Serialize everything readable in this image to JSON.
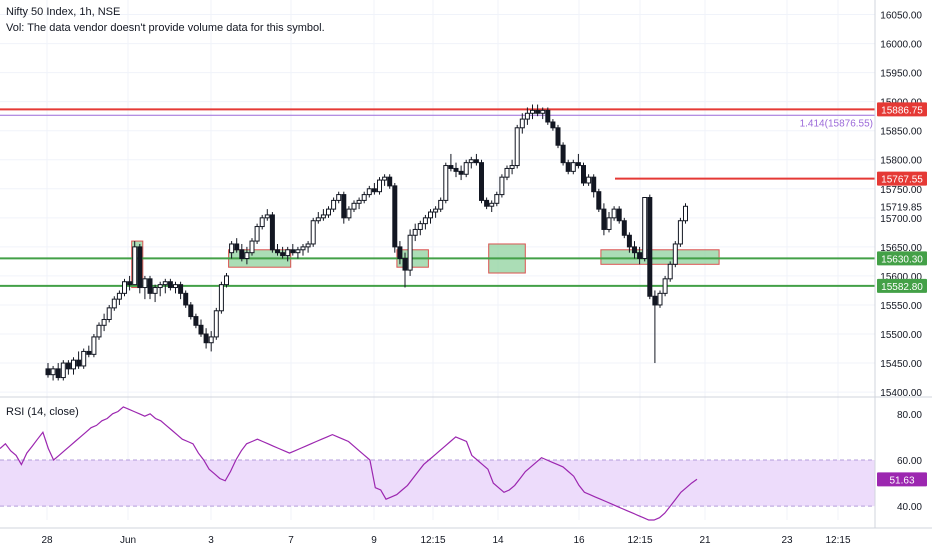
{
  "header": {
    "title": "Nifty 50 Index, 1h, NSE",
    "volume_note": "Vol: The data vendor doesn't provide volume data for this symbol."
  },
  "colors": {
    "background": "#ffffff",
    "candle_up_fill": "#ffffff",
    "candle_up_border": "#131722",
    "candle_down": "#131722",
    "resistance": "#e53935",
    "support": "#43a047",
    "fib": "#9c6ad9",
    "zone_fill": "#8fd19e",
    "zone_border": "#d9534f",
    "rsi_line": "#9c27b0",
    "rsi_band": "#eddcfb",
    "axis_text": "#131722"
  },
  "chart_data": {
    "type": "candlestick",
    "title": "Nifty 50 Index, 1h, NSE",
    "ylim": [
      15395,
      16075
    ],
    "y_axis_ticks": [
      "16050.00",
      "16000.00",
      "15950.00",
      "15900.00",
      "15850.00",
      "15800.00",
      "15750.00",
      "15700.00",
      "15650.00",
      "15600.00",
      "15550.00",
      "15500.00",
      "15450.00",
      "15400.00"
    ],
    "price_labels": [
      {
        "text": "15886.75",
        "value": 15886.75,
        "kind": "resistance"
      },
      {
        "text": "15767.55",
        "value": 15767.55,
        "kind": "resistance"
      },
      {
        "text": "15719.85",
        "value": 15719.85,
        "kind": "plain"
      },
      {
        "text": "15630.30",
        "value": 15630.3,
        "kind": "support"
      },
      {
        "text": "15582.80",
        "value": 15582.8,
        "kind": "support"
      }
    ],
    "fib_label": {
      "text": "1.414(15876.55)",
      "value": 15876.55
    },
    "x_axis_labels": [
      "28",
      "Jun",
      "3",
      "7",
      "9",
      "12:15",
      "14",
      "16",
      "12:15",
      "21",
      "23",
      "12:15"
    ],
    "candles": [
      [
        15440,
        15450,
        15425,
        15430
      ],
      [
        15430,
        15445,
        15420,
        15440
      ],
      [
        15440,
        15450,
        15420,
        15425
      ],
      [
        15425,
        15455,
        15420,
        15450
      ],
      [
        15450,
        15455,
        15430,
        15440
      ],
      [
        15440,
        15460,
        15430,
        15455
      ],
      [
        15455,
        15470,
        15440,
        15445
      ],
      [
        15445,
        15475,
        15440,
        15470
      ],
      [
        15470,
        15480,
        15460,
        15465
      ],
      [
        15465,
        15500,
        15460,
        15495
      ],
      [
        15495,
        15520,
        15490,
        15515
      ],
      [
        15515,
        15535,
        15505,
        15525
      ],
      [
        15525,
        15550,
        15520,
        15545
      ],
      [
        15545,
        15565,
        15540,
        15560
      ],
      [
        15560,
        15575,
        15550,
        15570
      ],
      [
        15570,
        15595,
        15565,
        15590
      ],
      [
        15590,
        15600,
        15575,
        15585
      ],
      [
        15585,
        15660,
        15585,
        15650
      ],
      [
        15650,
        15655,
        15570,
        15580
      ],
      [
        15580,
        15600,
        15560,
        15595
      ],
      [
        15595,
        15600,
        15560,
        15570
      ],
      [
        15570,
        15585,
        15555,
        15580
      ],
      [
        15580,
        15590,
        15565,
        15585
      ],
      [
        15585,
        15595,
        15570,
        15590
      ],
      [
        15590,
        15595,
        15575,
        15580
      ],
      [
        15580,
        15590,
        15570,
        15585
      ],
      [
        15585,
        15590,
        15560,
        15570
      ],
      [
        15570,
        15575,
        15545,
        15550
      ],
      [
        15550,
        15555,
        15525,
        15530
      ],
      [
        15530,
        15535,
        15510,
        15515
      ],
      [
        15515,
        15525,
        15495,
        15500
      ],
      [
        15500,
        15510,
        15475,
        15485
      ],
      [
        15485,
        15505,
        15470,
        15495
      ],
      [
        15495,
        15545,
        15490,
        15540
      ],
      [
        15540,
        15590,
        15535,
        15585
      ],
      [
        15585,
        15605,
        15580,
        15600
      ],
      [
        15640,
        15660,
        15630,
        15655
      ],
      [
        15655,
        15665,
        15640,
        15645
      ],
      [
        15645,
        15655,
        15625,
        15630
      ],
      [
        15630,
        15650,
        15620,
        15640
      ],
      [
        15640,
        15665,
        15635,
        15660
      ],
      [
        15660,
        15690,
        15655,
        15685
      ],
      [
        15685,
        15705,
        15680,
        15700
      ],
      [
        15700,
        15715,
        15695,
        15705
      ],
      [
        15705,
        15710,
        15640,
        15645
      ],
      [
        15645,
        15655,
        15635,
        15640
      ],
      [
        15640,
        15650,
        15630,
        15635
      ],
      [
        15635,
        15650,
        15625,
        15645
      ],
      [
        15645,
        15655,
        15635,
        15640
      ],
      [
        15640,
        15650,
        15630,
        15645
      ],
      [
        15645,
        15655,
        15635,
        15650
      ],
      [
        15650,
        15660,
        15640,
        15655
      ],
      [
        15655,
        15700,
        15650,
        15695
      ],
      [
        15695,
        15710,
        15690,
        15700
      ],
      [
        15700,
        15715,
        15695,
        15705
      ],
      [
        15705,
        15720,
        15700,
        15715
      ],
      [
        15715,
        15735,
        15710,
        15730
      ],
      [
        15730,
        15745,
        15725,
        15740
      ],
      [
        15740,
        15745,
        15690,
        15700
      ],
      [
        15700,
        15720,
        15695,
        15715
      ],
      [
        15715,
        15730,
        15710,
        15725
      ],
      [
        15725,
        15735,
        15715,
        15730
      ],
      [
        15730,
        15745,
        15725,
        15740
      ],
      [
        15740,
        15755,
        15735,
        15750
      ],
      [
        15750,
        15760,
        15740,
        15745
      ],
      [
        15745,
        15770,
        15740,
        15765
      ],
      [
        15765,
        15775,
        15755,
        15770
      ],
      [
        15770,
        15775,
        15750,
        15755
      ],
      [
        15755,
        15760,
        15640,
        15650
      ],
      [
        15650,
        15660,
        15620,
        15630
      ],
      [
        15630,
        15640,
        15580,
        15610
      ],
      [
        15610,
        15680,
        15600,
        15670
      ],
      [
        15670,
        15690,
        15660,
        15680
      ],
      [
        15680,
        15695,
        15670,
        15690
      ],
      [
        15690,
        15705,
        15680,
        15700
      ],
      [
        15700,
        15715,
        15690,
        15710
      ],
      [
        15710,
        15720,
        15700,
        15715
      ],
      [
        15715,
        15735,
        15710,
        15730
      ],
      [
        15730,
        15795,
        15725,
        15790
      ],
      [
        15790,
        15810,
        15780,
        15785
      ],
      [
        15785,
        15795,
        15770,
        15780
      ],
      [
        15780,
        15790,
        15765,
        15775
      ],
      [
        15775,
        15800,
        15770,
        15795
      ],
      [
        15795,
        15805,
        15785,
        15800
      ],
      [
        15800,
        15810,
        15790,
        15795
      ],
      [
        15795,
        15800,
        15725,
        15730
      ],
      [
        15730,
        15735,
        15715,
        15720
      ],
      [
        15720,
        15730,
        15710,
        15725
      ],
      [
        15725,
        15745,
        15720,
        15740
      ],
      [
        15740,
        15775,
        15735,
        15770
      ],
      [
        15770,
        15790,
        15765,
        15785
      ],
      [
        15785,
        15800,
        15775,
        15790
      ],
      [
        15790,
        15860,
        15785,
        15855
      ],
      [
        15855,
        15880,
        15845,
        15870
      ],
      [
        15870,
        15890,
        15860,
        15880
      ],
      [
        15880,
        15895,
        15870,
        15885
      ],
      [
        15885,
        15895,
        15875,
        15880
      ],
      [
        15880,
        15890,
        15870,
        15885
      ],
      [
        15885,
        15890,
        15860,
        15865
      ],
      [
        15865,
        15870,
        15850,
        15855
      ],
      [
        15855,
        15860,
        15820,
        15825
      ],
      [
        15825,
        15830,
        15790,
        15795
      ],
      [
        15795,
        15800,
        15775,
        15780
      ],
      [
        15780,
        15800,
        15775,
        15795
      ],
      [
        15795,
        15810,
        15785,
        15790
      ],
      [
        15790,
        15795,
        15755,
        15760
      ],
      [
        15760,
        15775,
        15755,
        15770
      ],
      [
        15770,
        15775,
        15735,
        15745
      ],
      [
        15745,
        15750,
        15710,
        15715
      ],
      [
        15715,
        15725,
        15670,
        15680
      ],
      [
        15680,
        15710,
        15675,
        15700
      ],
      [
        15700,
        15720,
        15695,
        15715
      ],
      [
        15715,
        15720,
        15690,
        15695
      ],
      [
        15695,
        15700,
        15665,
        15670
      ],
      [
        15670,
        15675,
        15640,
        15650
      ],
      [
        15650,
        15660,
        15630,
        15640
      ],
      [
        15640,
        15650,
        15620,
        15630
      ],
      [
        15630,
        15735,
        15625,
        15735
      ],
      [
        15735,
        15740,
        15560,
        15565
      ],
      [
        15565,
        15575,
        15450,
        15550
      ],
      [
        15550,
        15575,
        15545,
        15570
      ],
      [
        15570,
        15600,
        15565,
        15595
      ],
      [
        15595,
        15625,
        15590,
        15620
      ],
      [
        15620,
        15660,
        15615,
        15655
      ],
      [
        15655,
        15700,
        15650,
        15695
      ],
      [
        15695,
        15725,
        15690,
        15719.85
      ]
    ],
    "resistance_levels": [
      15886.75,
      15767.55
    ],
    "support_levels": [
      15630.3,
      15582.8
    ],
    "fib_level": 15876.55,
    "zones": [
      {
        "from_index": 17,
        "to_index": 18,
        "low": 15580,
        "high": 15660
      },
      {
        "from_index": 36,
        "to_index": 47,
        "low": 15615,
        "high": 15645
      },
      {
        "from_index": 69,
        "to_index": 74,
        "low": 15615,
        "high": 15645
      },
      {
        "from_index": 87,
        "to_index": 93,
        "low": 15605,
        "high": 15655
      },
      {
        "from_index": 109,
        "to_index": 131,
        "low": 15620,
        "high": 15645
      }
    ],
    "rsi": {
      "title": "RSI (14, close)",
      "last_value_label": "51.63",
      "ylim": [
        34,
        86
      ],
      "y_axis_ticks": [
        "80.00",
        "60.00",
        "40.00"
      ],
      "band": [
        40,
        60
      ],
      "values": [
        65,
        67,
        64,
        62,
        58,
        63,
        66,
        69,
        72,
        65,
        60,
        62,
        64,
        66,
        68,
        70,
        72,
        74,
        75,
        77,
        78,
        80,
        81,
        83,
        82,
        81,
        80,
        79,
        80,
        78,
        77,
        75,
        73,
        71,
        69,
        68,
        67,
        63,
        60,
        56,
        54,
        52,
        51,
        55,
        60,
        64,
        67,
        68,
        69,
        68,
        67,
        66,
        65,
        64,
        63,
        64,
        65,
        66,
        67,
        68,
        69,
        70,
        71,
        70,
        69,
        68,
        66,
        64,
        62,
        60,
        48,
        47,
        43,
        44,
        45,
        47,
        49,
        52,
        55,
        58,
        60,
        62,
        64,
        66,
        68,
        70,
        69,
        68,
        62,
        60,
        58,
        56,
        50,
        48,
        46,
        47,
        49,
        52,
        55,
        57,
        59,
        61,
        60,
        59,
        58,
        57,
        55,
        53,
        49,
        46,
        45,
        44,
        43,
        42,
        41,
        40,
        39,
        38,
        37,
        36,
        35,
        34,
        34,
        35,
        37,
        40,
        43,
        46,
        48,
        50,
        51.63
      ]
    }
  }
}
